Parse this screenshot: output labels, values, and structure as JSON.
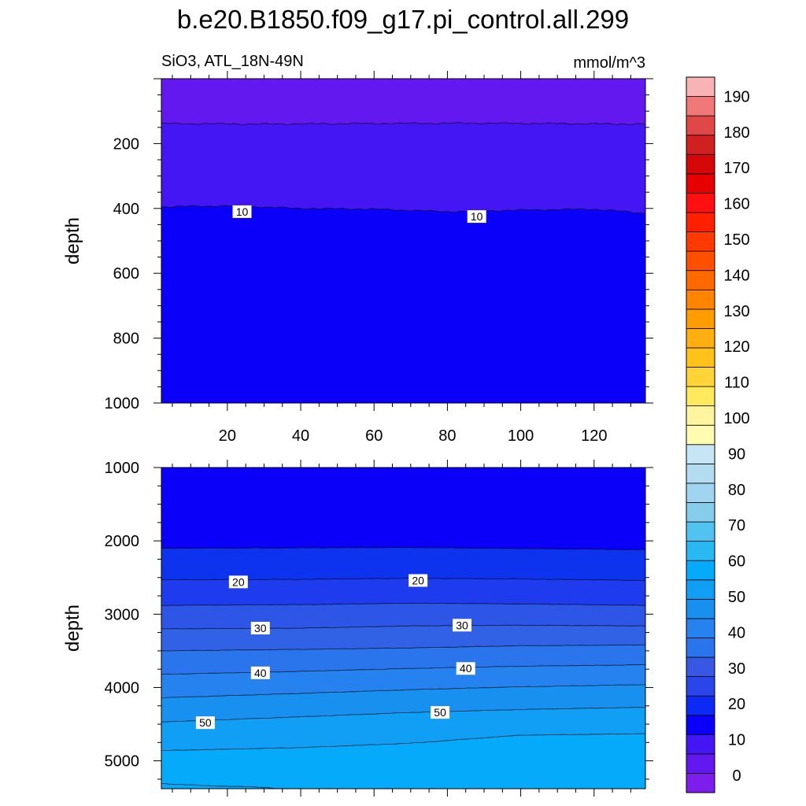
{
  "figure": {
    "title": "b.e20.B1850.f09_g17.pi_control.all.299",
    "subtitle_left": "SiO3, ATL_18N-49N",
    "subtitle_right": "mmol/m^3"
  },
  "chart_data": [
    {
      "type": "contour",
      "panel": "upper",
      "x": {
        "range": [
          2,
          134
        ],
        "ticks": [
          20,
          40,
          60,
          80,
          100,
          120
        ]
      },
      "y": {
        "label": "depth",
        "range": [
          0,
          1000
        ],
        "inverted": true,
        "ticks": [
          200,
          400,
          600,
          800,
          1000
        ]
      },
      "bands": [
        {
          "lo": 0,
          "hi": 5,
          "color": "#6418f0"
        },
        {
          "lo": 5,
          "hi": 10,
          "color": "#4416f4"
        },
        {
          "lo": 10,
          "hi": 15,
          "color": "#0a00fa"
        }
      ],
      "contours": [
        {
          "level": 5,
          "depth_at": [
            [
              2,
              138
            ],
            [
              30,
              140
            ],
            [
              60,
              138
            ],
            [
              90,
              137
            ],
            [
              134,
              140
            ]
          ],
          "label": ""
        },
        {
          "level": 10,
          "depth_at": [
            [
              2,
              395
            ],
            [
              20,
              392
            ],
            [
              40,
              400
            ],
            [
              60,
              402
            ],
            [
              80,
              410
            ],
            [
              100,
              405
            ],
            [
              120,
              402
            ],
            [
              134,
              415
            ]
          ],
          "label": "10"
        }
      ],
      "contour_labels": [
        {
          "text": "10",
          "x": 24,
          "depth": 410
        },
        {
          "text": "10",
          "x": 88,
          "depth": 425
        }
      ]
    },
    {
      "type": "contour",
      "panel": "lower",
      "x": {
        "range": [
          2,
          134
        ],
        "ticks": [
          20,
          40,
          60,
          80,
          100,
          120
        ]
      },
      "y": {
        "label": "depth",
        "range": [
          1000,
          5380
        ],
        "inverted": true,
        "ticks": [
          1000,
          2000,
          3000,
          4000,
          5000
        ]
      },
      "bands": [
        {
          "lo": 10,
          "hi": 15,
          "color": "#0a00fa"
        },
        {
          "lo": 15,
          "hi": 20,
          "color": "#0d33ee"
        },
        {
          "lo": 20,
          "hi": 25,
          "color": "#1e3ced"
        },
        {
          "lo": 25,
          "hi": 30,
          "color": "#2d55e6"
        },
        {
          "lo": 30,
          "hi": 35,
          "color": "#3162e5"
        },
        {
          "lo": 35,
          "hi": 40,
          "color": "#2a74ec"
        },
        {
          "lo": 40,
          "hi": 45,
          "color": "#2582ee"
        },
        {
          "lo": 45,
          "hi": 50,
          "color": "#1890f0"
        },
        {
          "lo": 50,
          "hi": 55,
          "color": "#119ef5"
        },
        {
          "lo": 55,
          "hi": 60,
          "color": "#06aafa"
        }
      ],
      "contours": [
        {
          "level": 15,
          "depth_at": [
            [
              2,
              2100
            ],
            [
              40,
              2095
            ],
            [
              70,
              2090
            ],
            [
              100,
              2105
            ],
            [
              134,
              2120
            ]
          ],
          "label": ""
        },
        {
          "level": 20,
          "depth_at": [
            [
              2,
              2530
            ],
            [
              40,
              2525
            ],
            [
              70,
              2510
            ],
            [
              100,
              2520
            ],
            [
              134,
              2540
            ]
          ],
          "label": "20"
        },
        {
          "level": 25,
          "depth_at": [
            [
              2,
              2880
            ],
            [
              40,
              2870
            ],
            [
              70,
              2850
            ],
            [
              100,
              2860
            ],
            [
              134,
              2880
            ]
          ],
          "label": ""
        },
        {
          "level": 30,
          "depth_at": [
            [
              2,
              3200
            ],
            [
              40,
              3190
            ],
            [
              70,
              3160
            ],
            [
              100,
              3150
            ],
            [
              134,
              3160
            ]
          ],
          "label": "30"
        },
        {
          "level": 35,
          "depth_at": [
            [
              2,
              3500
            ],
            [
              40,
              3480
            ],
            [
              70,
              3460
            ],
            [
              100,
              3430
            ],
            [
              134,
              3420
            ]
          ],
          "label": ""
        },
        {
          "level": 40,
          "depth_at": [
            [
              2,
              3820
            ],
            [
              40,
              3780
            ],
            [
              70,
              3740
            ],
            [
              100,
              3710
            ],
            [
              134,
              3690
            ]
          ],
          "label": "40"
        },
        {
          "level": 45,
          "depth_at": [
            [
              2,
              4140
            ],
            [
              40,
              4080
            ],
            [
              70,
              4030
            ],
            [
              100,
              3990
            ],
            [
              134,
              3960
            ]
          ],
          "label": ""
        },
        {
          "level": 50,
          "depth_at": [
            [
              2,
              4470
            ],
            [
              40,
              4400
            ],
            [
              70,
              4340
            ],
            [
              100,
              4300
            ],
            [
              134,
              4270
            ]
          ],
          "label": "50"
        },
        {
          "level": 55,
          "depth_at": [
            [
              2,
              4860
            ],
            [
              40,
              4820
            ],
            [
              70,
              4760
            ],
            [
              100,
              4650
            ],
            [
              134,
              4630
            ]
          ],
          "label": ""
        },
        {
          "level": 60,
          "depth_at": [
            [
              2,
              5310
            ],
            [
              15,
              5340
            ],
            [
              30,
              5360
            ],
            [
              34,
              5380
            ]
          ],
          "label": ""
        }
      ],
      "contour_labels": [
        {
          "text": "20",
          "x": 23,
          "depth": 2560
        },
        {
          "text": "20",
          "x": 72,
          "depth": 2540
        },
        {
          "text": "30",
          "x": 29,
          "depth": 3190
        },
        {
          "text": "30",
          "x": 84,
          "depth": 3150
        },
        {
          "text": "40",
          "x": 29,
          "depth": 3800
        },
        {
          "text": "40",
          "x": 85,
          "depth": 3740
        },
        {
          "text": "50",
          "x": 14,
          "depth": 4480
        },
        {
          "text": "50",
          "x": 78,
          "depth": 4340
        }
      ]
    }
  ],
  "colorbar": {
    "labels": [
      "0",
      "10",
      "20",
      "30",
      "40",
      "50",
      "60",
      "70",
      "80",
      "90",
      "100",
      "110",
      "120",
      "130",
      "140",
      "150",
      "160",
      "170",
      "180",
      "190"
    ],
    "colors": [
      "#7e1eec",
      "#6418f0",
      "#4416f4",
      "#0a00fa",
      "#0d2af5",
      "#2a46e8",
      "#3858e4",
      "#2a74ec",
      "#2582ee",
      "#1890f0",
      "#119ef5",
      "#06aafa",
      "#2ab8f2",
      "#52c2f0",
      "#86cdec",
      "#a0d4f0",
      "#b4dcf0",
      "#c6e6f6",
      "#fffbb0",
      "#fff5a0",
      "#ffe95c",
      "#ffd438",
      "#ffc21a",
      "#ffb010",
      "#ff9c00",
      "#ff8400",
      "#ff6a00",
      "#ff5000",
      "#ff3a00",
      "#ff2000",
      "#ff1010",
      "#e60000",
      "#d40808",
      "#d02020",
      "#e04848",
      "#f07878",
      "#f8b4b4"
    ]
  }
}
